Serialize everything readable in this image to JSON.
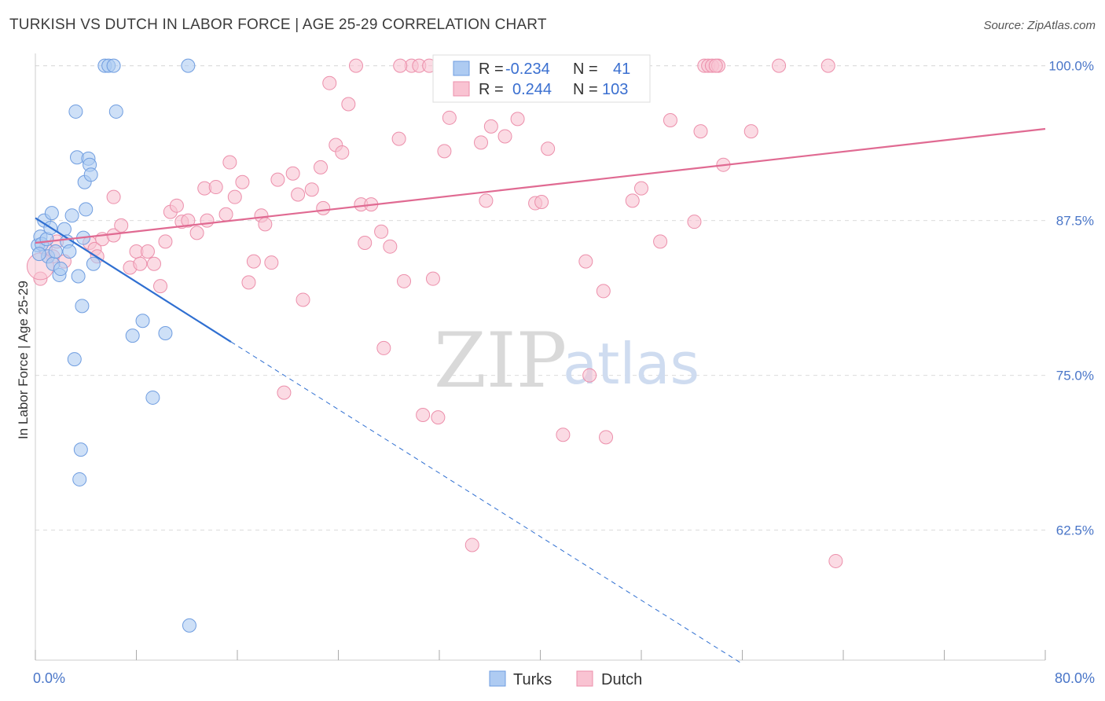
{
  "title": "TURKISH VS DUTCH IN LABOR FORCE | AGE 25-29 CORRELATION CHART",
  "source": "Source: ZipAtlas.com",
  "watermark": {
    "zip": "ZIP",
    "atlas": "atlas"
  },
  "colors": {
    "turks_fill": "#aecbf2",
    "turks_stroke": "#6f9de0",
    "turks_line": "#2f6fd1",
    "dutch_fill": "#f9c3d2",
    "dutch_stroke": "#ec8fab",
    "dutch_line": "#e06a92",
    "axis_text": "#4a76c8"
  },
  "chart_data": {
    "type": "scatter",
    "title": "TURKISH VS DUTCH IN LABOR FORCE | AGE 25-29 CORRELATION CHART",
    "xlabel": "",
    "ylabel": "In Labor Force | Age 25-29",
    "xlim": [
      0,
      80
    ],
    "ylim": [
      52.0,
      101.5
    ],
    "x_tick_labels": [
      "0.0%",
      "80.0%"
    ],
    "y_ticks": [
      62.5,
      75.0,
      87.5,
      100.0
    ],
    "y_tick_labels": [
      "62.5%",
      "75.0%",
      "87.5%",
      "100.0%"
    ],
    "legend": {
      "position": "top-center",
      "entries": [
        {
          "r_label": "R =",
          "r_value": "-0.234",
          "n_label": "N =",
          "n_value": "41"
        },
        {
          "r_label": "R =",
          "r_value": "0.244",
          "n_label": "N =",
          "n_value": "103"
        }
      ]
    },
    "bottom_legend": [
      "Turks",
      "Dutch"
    ],
    "series": [
      {
        "name": "Turks",
        "trend": {
          "x0": 0,
          "y0": 87.7,
          "x1": 15.5,
          "y1": 77.7,
          "dash_to_x": 56,
          "dash_to_y": 51.7
        },
        "points": [
          [
            0.2,
            85.5
          ],
          [
            0.4,
            86.2
          ],
          [
            0.5,
            85.6
          ],
          [
            0.7,
            87.5
          ],
          [
            0.9,
            86.0
          ],
          [
            1.0,
            84.6
          ],
          [
            1.2,
            86.9
          ],
          [
            1.3,
            88.1
          ],
          [
            1.4,
            84.0
          ],
          [
            1.6,
            85.0
          ],
          [
            1.9,
            83.1
          ],
          [
            2.0,
            83.6
          ],
          [
            2.3,
            86.8
          ],
          [
            2.5,
            85.8
          ],
          [
            2.7,
            85.0
          ],
          [
            2.9,
            87.9
          ],
          [
            3.1,
            76.3
          ],
          [
            3.2,
            96.3
          ],
          [
            3.3,
            92.6
          ],
          [
            3.4,
            83.0
          ],
          [
            3.5,
            66.6
          ],
          [
            3.6,
            69.0
          ],
          [
            3.7,
            80.6
          ],
          [
            3.8,
            86.1
          ],
          [
            3.9,
            90.6
          ],
          [
            4.0,
            88.4
          ],
          [
            4.2,
            92.5
          ],
          [
            4.3,
            92.0
          ],
          [
            4.4,
            91.2
          ],
          [
            4.6,
            84.0
          ],
          [
            5.5,
            100.0
          ],
          [
            5.8,
            100.0
          ],
          [
            6.2,
            100.0
          ],
          [
            6.4,
            96.3
          ],
          [
            7.7,
            78.2
          ],
          [
            8.5,
            79.4
          ],
          [
            9.3,
            73.2
          ],
          [
            10.3,
            78.4
          ],
          [
            12.1,
            100.0
          ],
          [
            12.2,
            54.8
          ],
          [
            0.3,
            84.8
          ]
        ]
      },
      {
        "name": "Dutch",
        "trend": {
          "x0": 0,
          "y0": 85.7,
          "x1": 80,
          "y1": 94.9
        },
        "points": [
          [
            0.4,
            82.8
          ],
          [
            0.8,
            85.2
          ],
          [
            1.4,
            84.6
          ],
          [
            1.7,
            85.8
          ],
          [
            2.3,
            84.2
          ],
          [
            4.3,
            85.7
          ],
          [
            4.7,
            85.2
          ],
          [
            4.9,
            84.6
          ],
          [
            5.3,
            86.0
          ],
          [
            6.2,
            86.3
          ],
          [
            6.2,
            89.4
          ],
          [
            6.8,
            87.1
          ],
          [
            7.5,
            83.7
          ],
          [
            8.0,
            85.0
          ],
          [
            8.3,
            84.0
          ],
          [
            8.9,
            85.0
          ],
          [
            9.4,
            84.0
          ],
          [
            9.9,
            82.2
          ],
          [
            10.3,
            85.8
          ],
          [
            10.7,
            88.2
          ],
          [
            11.2,
            88.7
          ],
          [
            11.6,
            87.4
          ],
          [
            12.1,
            87.5
          ],
          [
            12.8,
            86.5
          ],
          [
            13.4,
            90.1
          ],
          [
            13.6,
            87.5
          ],
          [
            14.3,
            90.2
          ],
          [
            15.1,
            88.0
          ],
          [
            15.4,
            92.2
          ],
          [
            15.8,
            89.4
          ],
          [
            16.4,
            90.6
          ],
          [
            16.9,
            82.5
          ],
          [
            17.3,
            84.2
          ],
          [
            17.9,
            87.9
          ],
          [
            18.2,
            87.2
          ],
          [
            18.7,
            84.1
          ],
          [
            19.2,
            90.8
          ],
          [
            19.7,
            73.6
          ],
          [
            20.4,
            91.3
          ],
          [
            20.8,
            89.6
          ],
          [
            21.2,
            81.1
          ],
          [
            21.9,
            90.0
          ],
          [
            22.6,
            91.8
          ],
          [
            22.8,
            88.5
          ],
          [
            23.3,
            98.6
          ],
          [
            23.8,
            93.6
          ],
          [
            24.3,
            93.0
          ],
          [
            24.8,
            96.9
          ],
          [
            25.4,
            100.0
          ],
          [
            25.8,
            88.8
          ],
          [
            26.1,
            85.7
          ],
          [
            26.6,
            88.8
          ],
          [
            27.4,
            86.6
          ],
          [
            27.6,
            77.2
          ],
          [
            28.1,
            85.4
          ],
          [
            28.8,
            94.1
          ],
          [
            29.2,
            82.6
          ],
          [
            29.8,
            100.0
          ],
          [
            30.4,
            100.0
          ],
          [
            30.7,
            71.8
          ],
          [
            31.2,
            100.0
          ],
          [
            31.5,
            82.8
          ],
          [
            31.9,
            71.6
          ],
          [
            32.4,
            93.1
          ],
          [
            32.8,
            95.8
          ],
          [
            34.1,
            100.0
          ],
          [
            34.6,
            61.3
          ],
          [
            35.3,
            93.8
          ],
          [
            35.7,
            89.1
          ],
          [
            36.1,
            95.1
          ],
          [
            37.2,
            94.3
          ],
          [
            38.2,
            95.7
          ],
          [
            39.1,
            100.0
          ],
          [
            39.6,
            88.9
          ],
          [
            40.1,
            89.0
          ],
          [
            40.6,
            93.3
          ],
          [
            41.8,
            70.2
          ],
          [
            43.2,
            100.0
          ],
          [
            43.6,
            84.2
          ],
          [
            43.9,
            75.0
          ],
          [
            44.4,
            100.0
          ],
          [
            45.0,
            81.8
          ],
          [
            45.2,
            70.0
          ],
          [
            46.2,
            100.0
          ],
          [
            47.3,
            89.1
          ],
          [
            48.0,
            90.1
          ],
          [
            49.5,
            85.8
          ],
          [
            50.3,
            95.6
          ],
          [
            52.2,
            87.4
          ],
          [
            52.7,
            94.7
          ],
          [
            53.0,
            100.0
          ],
          [
            53.3,
            100.0
          ],
          [
            53.6,
            100.0
          ],
          [
            54.1,
            100.0
          ],
          [
            54.5,
            92.0
          ],
          [
            56.7,
            94.7
          ],
          [
            58.9,
            100.0
          ],
          [
            62.8,
            100.0
          ],
          [
            63.4,
            60.0
          ],
          [
            44.7,
            100.0
          ],
          [
            28.9,
            100.0
          ],
          [
            38.9,
            100.0
          ],
          [
            53.9,
            100.0
          ]
        ]
      }
    ]
  }
}
